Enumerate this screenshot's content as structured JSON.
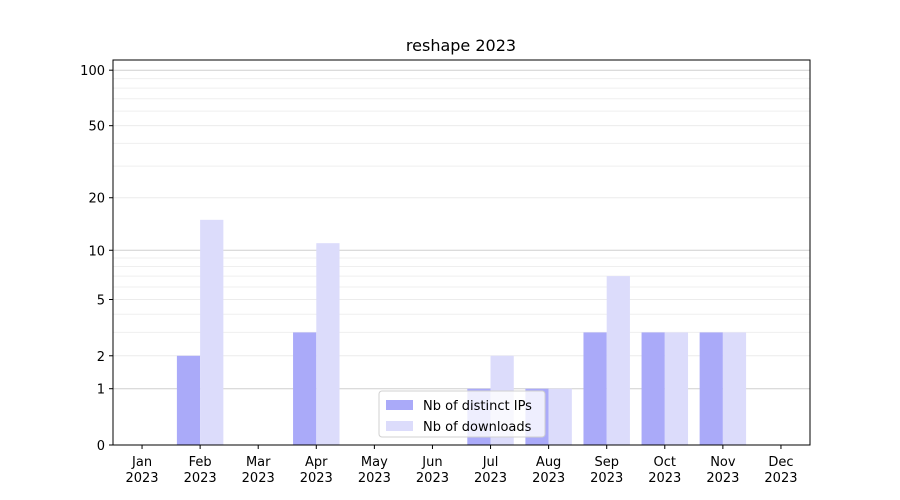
{
  "chart_data": {
    "type": "bar",
    "title": "reshape 2023",
    "categories": [
      "Jan 2023",
      "Feb 2023",
      "Mar 2023",
      "Apr 2023",
      "May 2023",
      "Jun 2023",
      "Jul 2023",
      "Aug 2023",
      "Sep 2023",
      "Oct 2023",
      "Nov 2023",
      "Dec 2023"
    ],
    "series": [
      {
        "name": "Nb of distinct IPs",
        "color": "#aaaaf9",
        "values": [
          0,
          2,
          0,
          3,
          0,
          0,
          1,
          1,
          3,
          3,
          3,
          0
        ]
      },
      {
        "name": "Nb of downloads",
        "color": "#dcdcfb",
        "values": [
          0,
          15,
          0,
          11,
          0,
          0,
          2,
          1,
          7,
          3,
          3,
          0
        ]
      }
    ],
    "yscale": "log1p",
    "ylim": [
      0,
      113.5
    ],
    "yticks": [
      0,
      1,
      2,
      5,
      10,
      20,
      50,
      100
    ],
    "minor_yticks": [
      3,
      4,
      6,
      7,
      8,
      9,
      30,
      40,
      60,
      70,
      80,
      90
    ],
    "grid": true,
    "legend": "lower center"
  }
}
